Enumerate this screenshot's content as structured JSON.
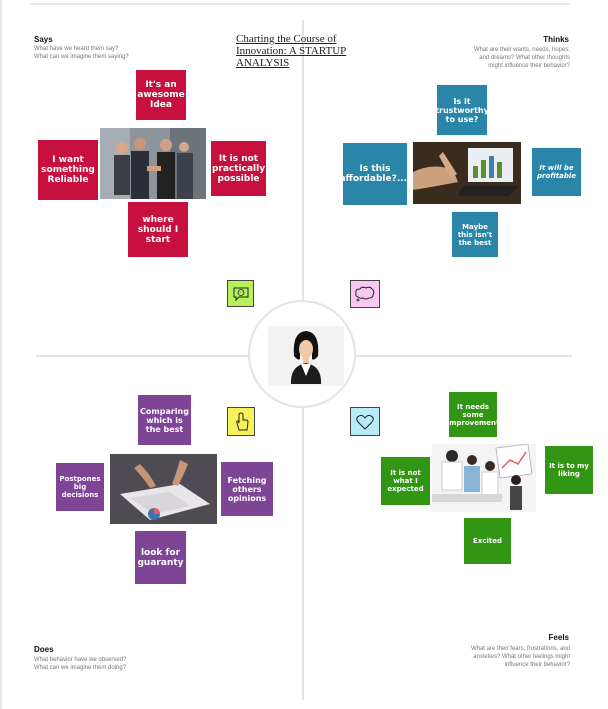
{
  "title": "Charting the Course of Innovation: A STARTUP ANALYSIS",
  "quadrants": {
    "says": {
      "title": "Says",
      "subtitle": "What have we heard them say?\nWhat can we imagine them saying?"
    },
    "thinks": {
      "title": "Thinks",
      "subtitle": "What are their wants, needs, hopes,\nand dreams? What other thoughts\nmight influence their behavior?"
    },
    "does": {
      "title": "Does",
      "subtitle": "What behavior have we observed?\nWhat can we imagine them doing?"
    },
    "feels": {
      "title": "Feels",
      "subtitle": "What are their fears, frustrations, and\nanxieties? What other feelings might\ninfluence their behavior?"
    }
  },
  "says_notes": [
    "It's an awesome Idea",
    "I want something Reliable",
    "It is not practically possible",
    "where should I start"
  ],
  "thinks_notes": [
    "Is it trustworthy to use?",
    "Is this affordable?....",
    "It will be profitable",
    "Maybe this isn't the best"
  ],
  "does_notes": [
    "Comparing which is the best",
    "Postpones big decisions",
    "Fetching others opinions",
    "look for guaranty"
  ],
  "feels_notes": [
    "It needs some improvement",
    "It is not what I expected",
    "It is to my liking",
    "Excited"
  ],
  "colors": {
    "says": "#c8103f",
    "thinks": "#2a86a8",
    "does": "#7e4496",
    "feels": "#319613",
    "says_icon": "#b6f05a",
    "thinks_icon": "#f9c8f0",
    "does_icon": "#f7f15d",
    "feels_icon": "#b7ecf6"
  },
  "icons": {
    "says": "smiley-speech-icon",
    "thinks": "thought-bubble-icon",
    "does": "pointing-hand-icon",
    "feels": "heart-icon",
    "center": "woman-avatar-icon"
  }
}
